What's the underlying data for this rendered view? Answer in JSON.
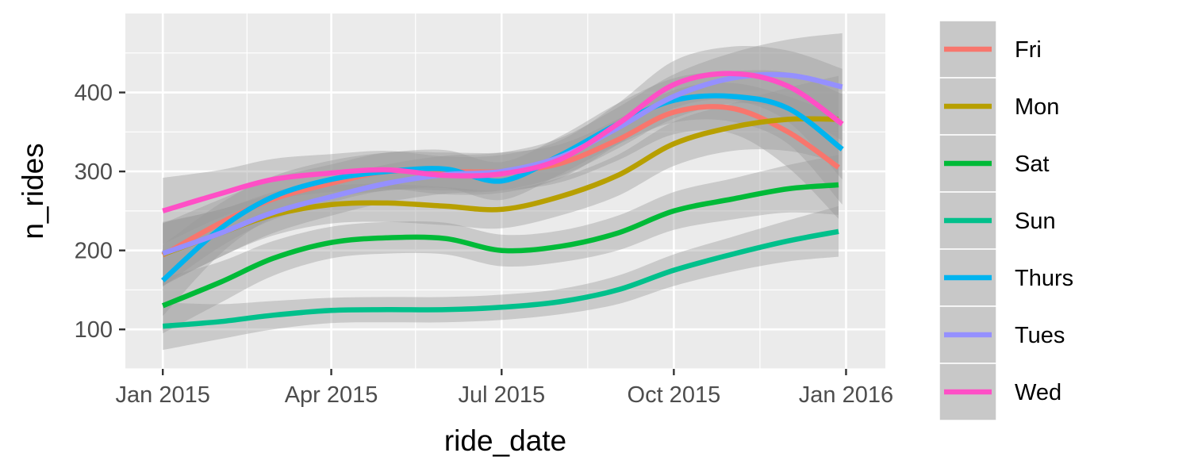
{
  "chart_data": {
    "type": "line",
    "xlabel": "ride_date",
    "ylabel": "n_rides",
    "x_ticks": [
      {
        "label": "Jan 2015",
        "date": "2015-01-01"
      },
      {
        "label": "Apr 2015",
        "date": "2015-04-01"
      },
      {
        "label": "Jul 2015",
        "date": "2015-07-01"
      },
      {
        "label": "Oct 2015",
        "date": "2015-10-01"
      },
      {
        "label": "Jan 2016",
        "date": "2016-01-01"
      }
    ],
    "y_ticks": [
      100,
      200,
      300,
      400
    ],
    "xlim": [
      "2014-12-12",
      "2016-01-22"
    ],
    "ylim": [
      50,
      500
    ],
    "grid": true,
    "confidence_band": true,
    "legend_position": "right",
    "series": [
      {
        "name": "Fri",
        "color": "#F8766D",
        "dates": [
          "2015-01-01",
          "2015-02-01",
          "2015-03-01",
          "2015-04-01",
          "2015-05-01",
          "2015-06-01",
          "2015-07-01",
          "2015-08-01",
          "2015-09-01",
          "2015-10-01",
          "2015-11-01",
          "2015-12-01",
          "2015-12-28"
        ],
        "values": [
          194,
          235,
          265,
          285,
          300,
          300,
          300,
          310,
          340,
          375,
          380,
          350,
          305
        ],
        "band": [
          40,
          30,
          26,
          24,
          24,
          24,
          24,
          24,
          26,
          28,
          32,
          45,
          65
        ]
      },
      {
        "name": "Mon",
        "color": "#B79F00",
        "dates": [
          "2015-01-01",
          "2015-02-01",
          "2015-03-01",
          "2015-04-01",
          "2015-05-01",
          "2015-06-01",
          "2015-07-01",
          "2015-08-01",
          "2015-09-01",
          "2015-10-01",
          "2015-11-01",
          "2015-12-01",
          "2015-12-28"
        ],
        "values": [
          195,
          222,
          245,
          258,
          260,
          256,
          252,
          268,
          295,
          335,
          356,
          366,
          366
        ],
        "band": [
          40,
          30,
          26,
          24,
          24,
          24,
          24,
          24,
          26,
          28,
          30,
          40,
          55
        ]
      },
      {
        "name": "Sat",
        "color": "#00BA38",
        "dates": [
          "2015-01-01",
          "2015-02-01",
          "2015-03-01",
          "2015-04-01",
          "2015-05-01",
          "2015-06-01",
          "2015-07-01",
          "2015-08-01",
          "2015-09-01",
          "2015-10-01",
          "2015-11-01",
          "2015-12-01",
          "2015-12-28"
        ],
        "values": [
          130,
          160,
          190,
          210,
          216,
          215,
          200,
          205,
          222,
          250,
          265,
          278,
          283
        ],
        "band": [
          35,
          26,
          22,
          20,
          20,
          20,
          20,
          20,
          22,
          24,
          26,
          30,
          38
        ]
      },
      {
        "name": "Sun",
        "color": "#00C08B",
        "dates": [
          "2015-01-01",
          "2015-02-01",
          "2015-03-01",
          "2015-04-01",
          "2015-05-01",
          "2015-06-01",
          "2015-07-01",
          "2015-08-01",
          "2015-09-01",
          "2015-10-01",
          "2015-11-01",
          "2015-12-01",
          "2015-12-28"
        ],
        "values": [
          104,
          110,
          118,
          124,
          125,
          125,
          128,
          135,
          150,
          175,
          195,
          212,
          224
        ],
        "band": [
          30,
          22,
          18,
          16,
          16,
          16,
          16,
          16,
          18,
          20,
          22,
          26,
          32
        ]
      },
      {
        "name": "Thurs",
        "color": "#00B4EF",
        "dates": [
          "2015-01-01",
          "2015-02-01",
          "2015-03-01",
          "2015-04-01",
          "2015-05-01",
          "2015-06-01",
          "2015-07-01",
          "2015-08-01",
          "2015-09-01",
          "2015-10-01",
          "2015-11-01",
          "2015-12-01",
          "2015-12-30"
        ],
        "values": [
          162,
          228,
          268,
          290,
          300,
          303,
          288,
          320,
          360,
          390,
          395,
          380,
          328
        ],
        "band": [
          45,
          32,
          26,
          24,
          24,
          24,
          24,
          24,
          26,
          28,
          32,
          45,
          70
        ]
      },
      {
        "name": "Tues",
        "color": "#9590FF",
        "dates": [
          "2015-01-01",
          "2015-02-01",
          "2015-03-01",
          "2015-04-01",
          "2015-05-01",
          "2015-06-01",
          "2015-07-01",
          "2015-08-01",
          "2015-09-01",
          "2015-10-01",
          "2015-11-01",
          "2015-12-01",
          "2015-12-30"
        ],
        "values": [
          196,
          222,
          248,
          268,
          285,
          296,
          300,
          318,
          355,
          395,
          418,
          422,
          407
        ],
        "band": [
          40,
          30,
          26,
          24,
          24,
          24,
          24,
          24,
          26,
          28,
          32,
          45,
          68
        ]
      },
      {
        "name": "Wed",
        "color": "#FF4FC6",
        "dates": [
          "2015-01-01",
          "2015-02-01",
          "2015-03-01",
          "2015-04-01",
          "2015-05-01",
          "2015-06-01",
          "2015-07-01",
          "2015-08-01",
          "2015-09-01",
          "2015-10-01",
          "2015-11-01",
          "2015-12-01",
          "2015-12-30"
        ],
        "values": [
          250,
          272,
          290,
          298,
          302,
          295,
          297,
          315,
          360,
          410,
          424,
          408,
          360
        ],
        "band": [
          42,
          30,
          26,
          24,
          24,
          24,
          24,
          24,
          26,
          30,
          34,
          45,
          70
        ]
      }
    ]
  }
}
